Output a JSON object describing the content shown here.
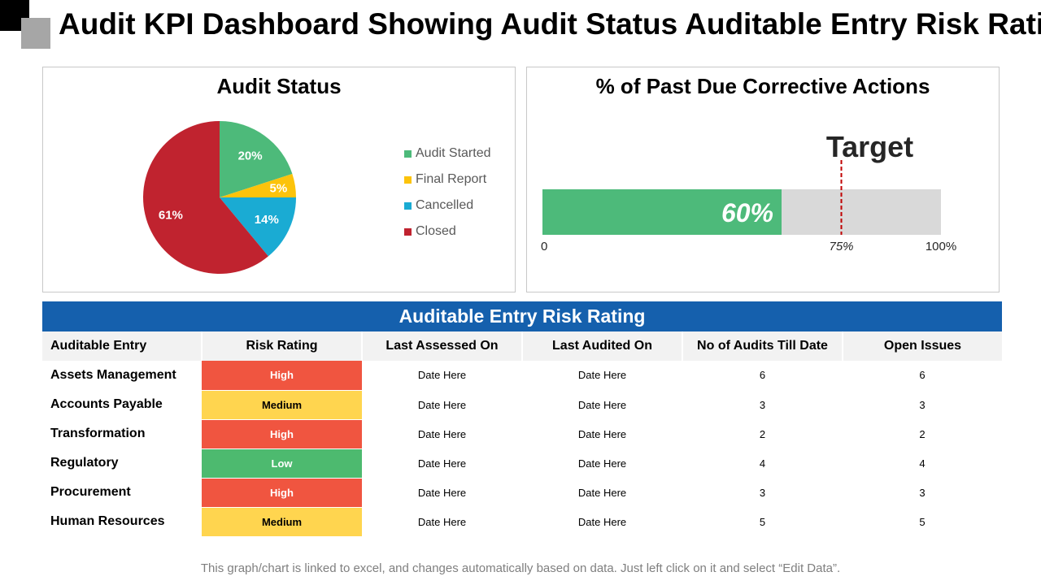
{
  "page": {
    "title": "Audit KPI Dashboard Showing Audit Status Auditable Entry Risk Rating",
    "footer": "This graph/chart is linked to excel, and changes automatically  based on data. Just left click on it and select “Edit Data”."
  },
  "chart_data": [
    {
      "type": "pie",
      "title": "Audit Status",
      "slices": [
        {
          "name": "Audit Started",
          "value": 20,
          "label": "20%",
          "color": "#4dba7a"
        },
        {
          "name": "Final Report",
          "value": 5,
          "label": "5%",
          "color": "#fcc30b"
        },
        {
          "name": "Cancelled",
          "value": 14,
          "label": "14%",
          "color": "#1aabd3"
        },
        {
          "name": "Closed",
          "value": 61,
          "label": "61%",
          "color": "#c0232f"
        }
      ],
      "legend_position": "right"
    },
    {
      "type": "bar",
      "title": "% of Past Due Corrective Actions",
      "orientation": "horizontal",
      "value": 60,
      "value_label": "60%",
      "max": 100,
      "target": 75,
      "target_text": "Target",
      "ticks": [
        {
          "value": 0,
          "label": "0"
        },
        {
          "value": 75,
          "label": "75%"
        },
        {
          "value": 100,
          "label": "100%"
        }
      ],
      "fill_color": "#4dba7a",
      "track_color": "#d9d9d9",
      "target_color": "#c00000"
    }
  ],
  "risk_table": {
    "title": "Auditable Entry Risk Rating",
    "columns": [
      "Auditable Entry",
      "Risk Rating",
      "Last Assessed On",
      "Last Audited On",
      "No of Audits Till Date",
      "Open Issues"
    ],
    "rows": [
      {
        "entry": "Assets Management",
        "rating": "High",
        "last_assessed": "Date Here",
        "last_audited": "Date Here",
        "audits": "6",
        "open_issues": "6"
      },
      {
        "entry": "Accounts Payable",
        "rating": "Medium",
        "last_assessed": "Date Here",
        "last_audited": "Date Here",
        "audits": "3",
        "open_issues": "3"
      },
      {
        "entry": "Transformation",
        "rating": "High",
        "last_assessed": "Date Here",
        "last_audited": "Date Here",
        "audits": "2",
        "open_issues": "2"
      },
      {
        "entry": "Regulatory",
        "rating": "Low",
        "last_assessed": "Date Here",
        "last_audited": "Date Here",
        "audits": "4",
        "open_issues": "4"
      },
      {
        "entry": "Procurement",
        "rating": "High",
        "last_assessed": "Date Here",
        "last_audited": "Date Here",
        "audits": "3",
        "open_issues": "3"
      },
      {
        "entry": "Human Resources",
        "rating": "Medium",
        "last_assessed": "Date Here",
        "last_audited": "Date Here",
        "audits": "5",
        "open_issues": "5"
      }
    ]
  }
}
